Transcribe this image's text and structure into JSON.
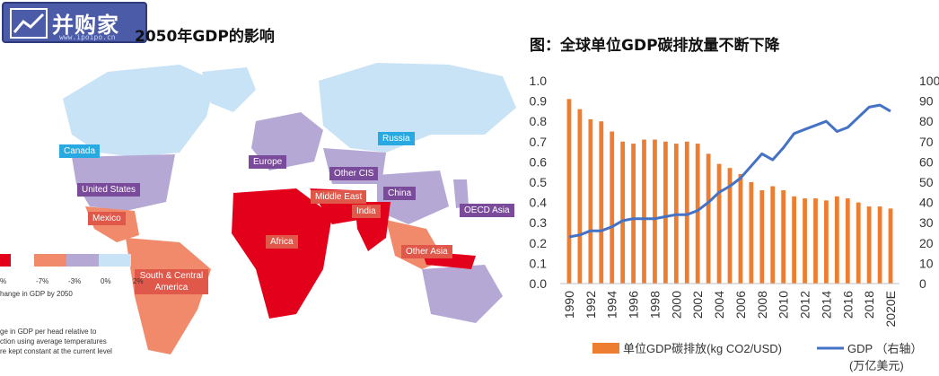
{
  "left": {
    "logo_text": "并购家",
    "logo_sub": "www.ipoipo.cn",
    "title": "2050年GDP的影响",
    "regions": [
      {
        "key": "canada",
        "label": "Canada",
        "style": "blue"
      },
      {
        "key": "russia",
        "label": "Russia",
        "style": "blue"
      },
      {
        "key": "europe",
        "label": "Europe",
        "style": "purple"
      },
      {
        "key": "other_cis",
        "label": "Other CIS",
        "style": "purple"
      },
      {
        "key": "united_states",
        "label": "United States",
        "style": "purple"
      },
      {
        "key": "middle_east",
        "label": "Middle East",
        "style": "red"
      },
      {
        "key": "china",
        "label": "China",
        "style": "purple"
      },
      {
        "key": "india",
        "label": "India",
        "style": "red"
      },
      {
        "key": "oecd_asia",
        "label": "OECD Asia",
        "style": "purple"
      },
      {
        "key": "mexico",
        "label": "Mexico",
        "style": "red"
      },
      {
        "key": "africa",
        "label": "Africa",
        "style": "red"
      },
      {
        "key": "other_asia",
        "label": "Other Asia",
        "style": "red"
      },
      {
        "key": "south_central_america",
        "label": "South & Central America",
        "style": "red"
      }
    ],
    "legend": {
      "ticks": [
        "%",
        "-7%",
        "-3%",
        "0%",
        "2%"
      ],
      "colors": [
        "#e3001b",
        "#f08a6a",
        "#b6a8d4",
        "#c8e3f5"
      ],
      "caption": "hange in GDP by 2050",
      "note_lines": [
        "ge in GDP per head relative to",
        "ction using average temperatures",
        "re kept constant at the current level"
      ]
    }
  },
  "right": {
    "title": "图：全球单位GDP碳排放量不断下降",
    "chart_data": {
      "type": "bar",
      "title": "图：全球单位GDP碳排放量不断下降",
      "categories": [
        "1990",
        "1991",
        "1992",
        "1993",
        "1994",
        "1995",
        "1996",
        "1997",
        "1998",
        "1999",
        "2000",
        "2001",
        "2002",
        "2003",
        "2004",
        "2005",
        "2006",
        "2007",
        "2008",
        "2009",
        "2010",
        "2011",
        "2012",
        "2013",
        "2014",
        "2015",
        "2016",
        "2017",
        "2018",
        "2019",
        "2020E"
      ],
      "x_tick_labels": [
        "1990",
        "1992",
        "1994",
        "1996",
        "1998",
        "2000",
        "2002",
        "2004",
        "2006",
        "2008",
        "2010",
        "2012",
        "2014",
        "2016",
        "2018",
        "2020E"
      ],
      "series": [
        {
          "name": "单位GDP碳排放(kg CO2/USD)",
          "type": "bar",
          "axis": "left",
          "color": "#ed7d31",
          "values": [
            0.91,
            0.86,
            0.81,
            0.8,
            0.75,
            0.7,
            0.69,
            0.71,
            0.71,
            0.7,
            0.69,
            0.7,
            0.69,
            0.64,
            0.59,
            0.57,
            0.54,
            0.5,
            0.46,
            0.48,
            0.46,
            0.43,
            0.42,
            0.42,
            0.41,
            0.43,
            0.42,
            0.4,
            0.38,
            0.38,
            0.37
          ]
        },
        {
          "name": "GDP （右轴）(万亿美元)",
          "type": "line",
          "axis": "right",
          "color": "#4472c4",
          "values": [
            23,
            24,
            26,
            26,
            28,
            31,
            32,
            32,
            32,
            33,
            34,
            34,
            36,
            40,
            45,
            48,
            52,
            58,
            64,
            61,
            67,
            74,
            76,
            78,
            80,
            75,
            77,
            82,
            87,
            88,
            85
          ]
        }
      ],
      "ylim_left": [
        0,
        1.0
      ],
      "yticks_left": [
        "0.0",
        "0.1",
        "0.2",
        "0.3",
        "0.4",
        "0.5",
        "0.6",
        "0.7",
        "0.8",
        "0.9",
        "1.0"
      ],
      "ylim_right": [
        0,
        100
      ],
      "yticks_right": [
        "0",
        "10",
        "20",
        "30",
        "40",
        "50",
        "60",
        "70",
        "80",
        "90",
        "100"
      ],
      "legend_labels": {
        "bar": "单位GDP碳排放(kg CO2/USD)",
        "line": "GDP （右轴）",
        "line_unit": "(万亿美元)"
      },
      "legend_position": "bottom",
      "grid": false
    }
  }
}
